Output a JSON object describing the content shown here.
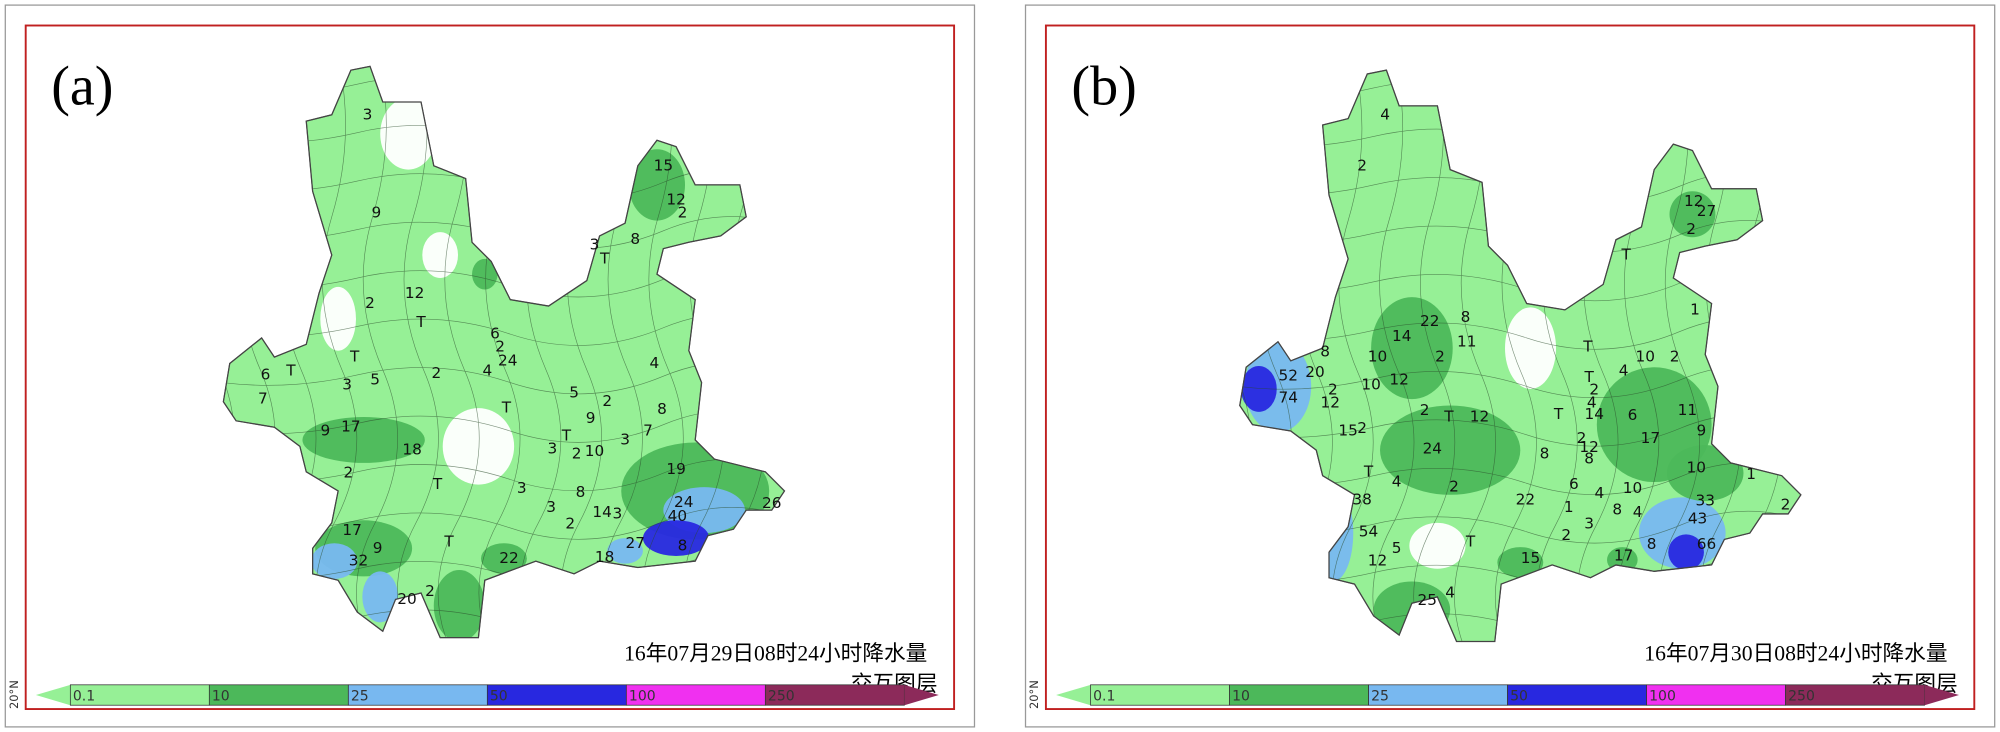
{
  "panels": [
    {
      "label": "(a)",
      "caption": "16年07月29日08时24小时降水量",
      "layer": "交互图层",
      "lat": "20°N",
      "stations": [
        "3",
        "9",
        "15",
        "12",
        "2",
        "8",
        "3",
        "T",
        "2",
        "12",
        "T",
        "6",
        "2",
        "24",
        "4",
        "2",
        "5",
        "3",
        "T",
        "6",
        "T",
        "7",
        "4",
        "8",
        "T",
        "5",
        "2",
        "9",
        "T",
        "3",
        "2",
        "10",
        "3",
        "7",
        "9",
        "17",
        "18",
        "2",
        "T",
        "3",
        "8",
        "19",
        "24",
        "26",
        "40",
        "8",
        "14",
        "3",
        "2",
        "3",
        "17",
        "9",
        "32",
        "T",
        "22",
        "27",
        "18",
        "20",
        "2"
      ]
    },
    {
      "label": "(b)",
      "caption": "16年07月30日08时24小时降水量",
      "layer": "交互图层",
      "lat": "20°N",
      "stations": [
        "4",
        "2",
        "12",
        "27",
        "2",
        "T",
        "1",
        "22",
        "8",
        "14",
        "11",
        "2",
        "10",
        "10",
        "12",
        "8",
        "20",
        "52",
        "2",
        "12",
        "74",
        "15",
        "2",
        "2",
        "12",
        "T",
        "24",
        "T",
        "10",
        "2",
        "4",
        "T",
        "2",
        "4",
        "T",
        "14",
        "6",
        "11",
        "9",
        "17",
        "12",
        "8",
        "2",
        "8",
        "10",
        "T",
        "4",
        "2",
        "22",
        "6",
        "4",
        "10",
        "1",
        "33",
        "43",
        "66",
        "2",
        "8",
        "4",
        "38",
        "54",
        "12",
        "5",
        "T",
        "15",
        "2",
        "3",
        "1",
        "17",
        "8",
        "25",
        "4"
      ]
    }
  ],
  "legend": {
    "ticks": [
      0.1,
      10,
      25,
      50,
      100,
      250
    ],
    "colors": [
      "#96f096",
      "#4cb85a",
      "#78b8f0",
      "#2828e0",
      "#f030f0",
      "#8c2a5a"
    ]
  }
}
